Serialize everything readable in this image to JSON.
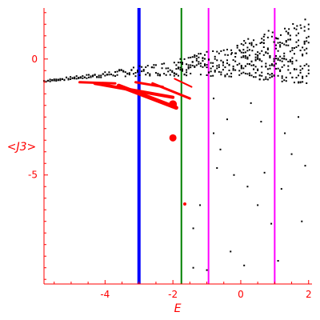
{
  "chart_data": {
    "type": "scatter",
    "xlabel": "E",
    "ylabel": "<J3>",
    "xlim": [
      -5.8,
      2.1
    ],
    "ylim": [
      -9.7,
      2.2
    ],
    "x_ticks": [
      -4,
      -2,
      0,
      2
    ],
    "y_ticks": [
      0,
      -5
    ],
    "x_tick_labels": [
      "-4",
      "-2",
      "0",
      "2"
    ],
    "y_tick_labels": [
      "0",
      "-5"
    ],
    "axis_color": "#ff0000",
    "vlines": [
      {
        "x": -3.0,
        "color": "#0000ff",
        "width": "thick"
      },
      {
        "x": -1.75,
        "color": "#008000",
        "width": "normal"
      },
      {
        "x": -0.95,
        "color": "#ff00ff",
        "width": "normal"
      },
      {
        "x": 1.0,
        "color": "#ff00ff",
        "width": "normal"
      }
    ],
    "series": [
      {
        "color": "#000000",
        "marker": "dot",
        "x_range": [
          -5.8,
          2.05
        ],
        "y_band": [
          -0.95,
          -0.65
        ],
        "points": [
          [
            -0.8,
            -3.2
          ],
          [
            -0.6,
            -3.9
          ],
          [
            -0.4,
            -2.6
          ],
          [
            -0.2,
            -5.0
          ],
          [
            0.2,
            -5.5
          ],
          [
            0.5,
            -6.3
          ],
          [
            0.7,
            -4.9
          ],
          [
            0.9,
            -7.1
          ],
          [
            1.2,
            -5.6
          ],
          [
            1.5,
            -4.1
          ],
          [
            1.8,
            -7.0
          ],
          [
            -1.4,
            -9.0
          ],
          [
            -1.0,
            -9.1
          ],
          [
            -0.3,
            -8.3
          ],
          [
            0.1,
            -8.9
          ],
          [
            1.1,
            -8.7
          ],
          [
            -1.4,
            -7.3
          ],
          [
            -1.2,
            -6.3
          ],
          [
            -0.7,
            -4.7
          ],
          [
            0.6,
            -2.7
          ],
          [
            1.3,
            -3.2
          ],
          [
            1.7,
            -2.5
          ],
          [
            -0.8,
            -1.7
          ],
          [
            0.3,
            -1.9
          ],
          [
            1.9,
            -4.6
          ]
        ]
      },
      {
        "color": "#ff0000",
        "marker": "dot",
        "x_range": [
          -4.75,
          -1.4
        ],
        "points": [
          [
            -2.0,
            -3.4
          ],
          [
            -1.65,
            -6.25
          ]
        ]
      }
    ]
  }
}
